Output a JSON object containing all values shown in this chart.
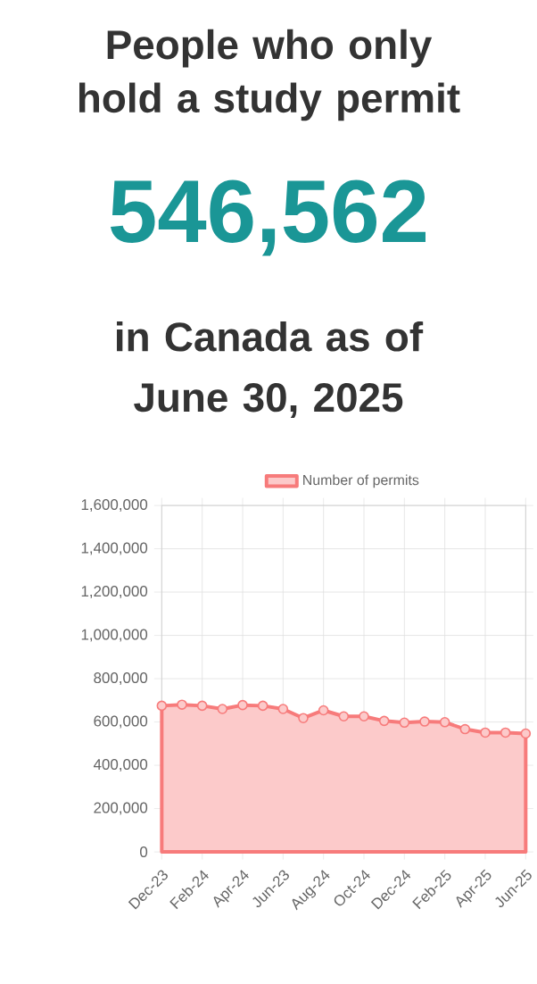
{
  "chart_data": {
    "type": "area",
    "title": "People who only hold a study permit",
    "subtitle": "546,562",
    "annotations": [
      "in Canada as of June 30, 2025"
    ],
    "categories": [
      "Dec-23",
      null,
      "Feb-24",
      null,
      "Apr-24",
      null,
      "Jun-23",
      null,
      "Aug-24",
      null,
      "Oct-24",
      null,
      "Dec-24",
      null,
      "Feb-25",
      null,
      "Apr-25",
      null,
      "Jun-25"
    ],
    "series": [
      {
        "name": "Number of permits",
        "color": "#f77b7b",
        "values": [
          675000,
          680000,
          675000,
          660000,
          678000,
          675000,
          660000,
          618000,
          654000,
          626000,
          626000,
          605000,
          597000,
          602000,
          599000,
          567000,
          551000,
          551000,
          546562
        ]
      }
    ],
    "ylim": [
      0,
      1600000
    ],
    "yticks": [
      0,
      {
        "value": 200000,
        "label": "200,000"
      },
      {
        "value": 400000,
        "label": "400,000"
      },
      {
        "value": 600000,
        "label": "600,000"
      },
      {
        "value": 800000,
        "label": "800,000"
      },
      {
        "value": 1000000,
        "label": "1,000,000"
      },
      {
        "value": 1200000,
        "label": "1,200,000"
      },
      {
        "value": 1400000,
        "label": "1,400,000"
      },
      {
        "value": 1600000,
        "label": "1,600,000"
      }
    ],
    "grid": true,
    "legend": "top",
    "marker": "circle"
  }
}
